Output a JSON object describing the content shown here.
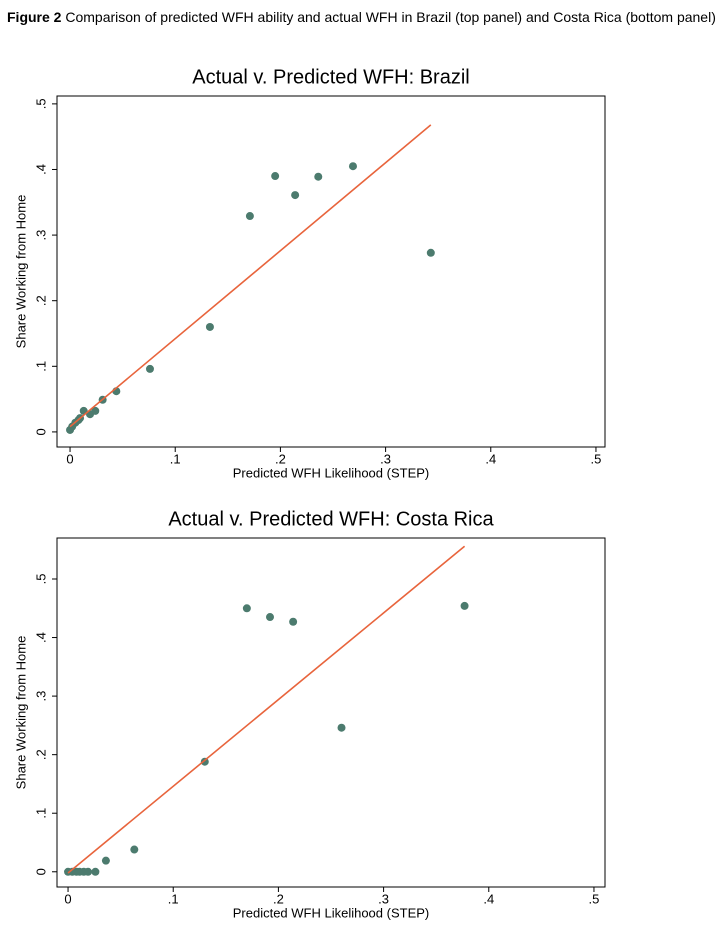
{
  "caption": {
    "label": "Figure 2",
    "text": "Comparison of predicted WFH ability and actual WFH in Brazil (top panel) and Costa Rica (bottom panel)"
  },
  "chart_data": [
    {
      "type": "scatter",
      "title": "Actual v. Predicted WFH: Brazil",
      "xlabel": "Predicted WFH Likelihood (STEP)",
      "ylabel": "Share Working from Home",
      "x": [
        0,
        0.002,
        0.005,
        0.008,
        0.0095,
        0.013,
        0.019,
        0.024,
        0.031,
        0.044,
        0.076,
        0.133,
        0.171,
        0.195,
        0.214,
        0.236,
        0.269,
        0.343
      ],
      "values": [
        0.003,
        0.008,
        0.014,
        0.018,
        0.021,
        0.032,
        0.027,
        0.032,
        0.049,
        0.062,
        0.096,
        0.16,
        0.329,
        0.39,
        0.361,
        0.389,
        0.405,
        0.273
      ],
      "color": "#4c7b6e",
      "fit_line": {
        "x": [
          0,
          0.343
        ],
        "y": [
          0.008,
          0.468
        ],
        "color": "#e8643c"
      },
      "xlim": [
        -0.0124,
        0.5086
      ],
      "ylim": [
        -0.023,
        0.512
      ],
      "xticks": [
        0,
        {
          "value": 0.1,
          "label": ".1"
        },
        {
          "value": 0.2,
          "label": ".2"
        },
        {
          "value": 0.3,
          "label": ".3"
        },
        {
          "value": 0.4,
          "label": ".4"
        },
        {
          "value": 0.5,
          "label": ".5"
        }
      ],
      "yticks": [
        0,
        {
          "value": 0.1,
          "label": ".1"
        },
        {
          "value": 0.2,
          "label": ".2"
        },
        {
          "value": 0.3,
          "label": ".3"
        },
        {
          "value": 0.4,
          "label": ".4"
        },
        {
          "value": 0.5,
          "label": ".5"
        }
      ],
      "grid": false
    },
    {
      "type": "scatter",
      "title": "Actual v. Predicted WFH: Costa Rica",
      "xlabel": "Predicted WFH Likelihood (STEP)",
      "ylabel": "Share Working from Home",
      "x": [
        0,
        0.004,
        0.008,
        0.011,
        0.015,
        0.019,
        0.026,
        0.036,
        0.063,
        0.13,
        0.17,
        0.192,
        0.214,
        0.26,
        0.377
      ],
      "values": [
        0,
        0,
        0,
        0,
        0,
        0,
        0,
        0.019,
        0.038,
        0.188,
        0.45,
        0.435,
        0.427,
        0.246,
        0.454
      ],
      "color": "#4c7b6e",
      "fit_line": {
        "x": [
          0,
          0.377
        ],
        "y": [
          -0.002,
          0.556
        ],
        "color": "#e8643c"
      },
      "xlim": [
        -0.0105,
        0.5105
      ],
      "ylim": [
        -0.026,
        0.57
      ],
      "xticks": [
        0,
        {
          "value": 0.1,
          "label": ".1"
        },
        {
          "value": 0.2,
          "label": ".2"
        },
        {
          "value": 0.3,
          "label": ".3"
        },
        {
          "value": 0.4,
          "label": ".4"
        },
        {
          "value": 0.5,
          "label": ".5"
        }
      ],
      "yticks": [
        0,
        {
          "value": 0.1,
          "label": ".1"
        },
        {
          "value": 0.2,
          "label": ".2"
        },
        {
          "value": 0.3,
          "label": ".3"
        },
        {
          "value": 0.4,
          "label": ".4"
        },
        {
          "value": 0.5,
          "label": ".5"
        }
      ],
      "grid": false
    }
  ]
}
